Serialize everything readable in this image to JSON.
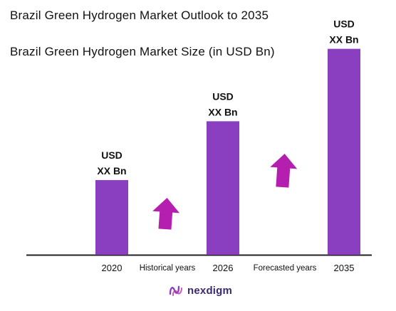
{
  "header": {
    "title": "Brazil Green Hydrogen Market Outlook to 2035",
    "subtitle": "Brazil Green Hydrogen Market Size (in USD Bn)"
  },
  "chart_data": {
    "type": "bar",
    "categories": [
      "2020",
      "2026",
      "2035"
    ],
    "values": [
      0.33,
      0.59,
      0.91
    ],
    "bar_labels": [
      [
        "USD",
        "XX Bn"
      ],
      [
        "USD",
        "XX Bn"
      ],
      [
        "USD",
        "XX Bn"
      ]
    ],
    "period_labels": [
      "Historical years",
      "Forecasted years"
    ],
    "ylim": [
      0,
      1
    ],
    "grid": false,
    "legend": "none",
    "colors": {
      "bar": "#8a3fc0",
      "arrow": "#b51fb0",
      "axis": "#222222"
    }
  },
  "logo": {
    "text": "nexdigm"
  }
}
